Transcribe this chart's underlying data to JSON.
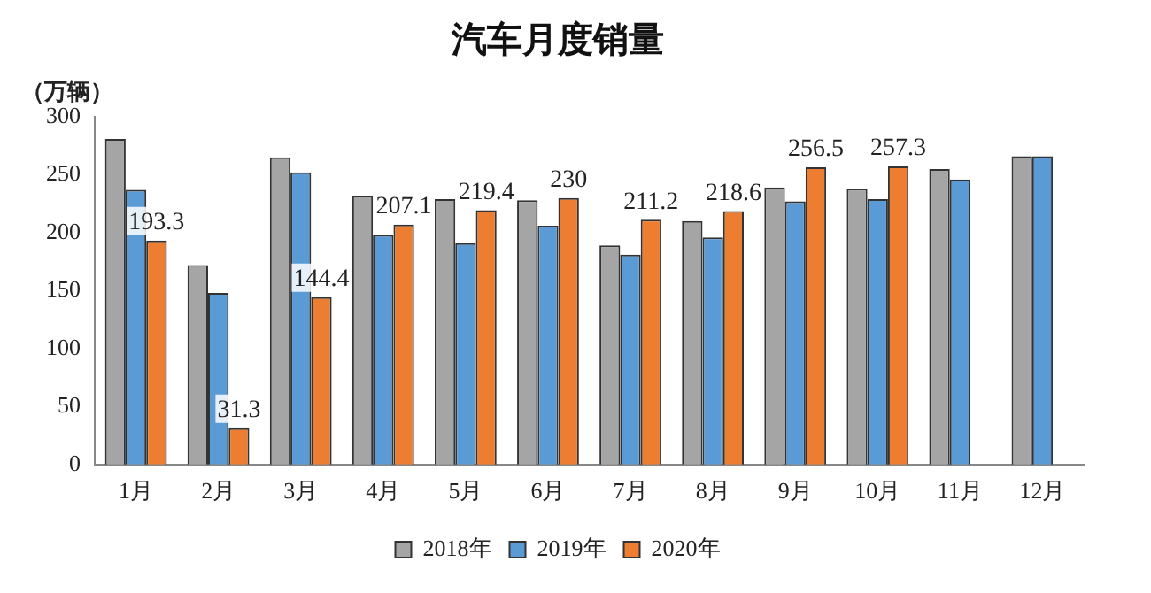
{
  "chart_data": {
    "type": "bar",
    "title": "汽车月度销量",
    "ylabel": "（万辆）",
    "categories": [
      "1月",
      "2月",
      "3月",
      "4月",
      "5月",
      "6月",
      "7月",
      "8月",
      "9月",
      "10月",
      "11月",
      "12月"
    ],
    "series": [
      {
        "name": "2018年",
        "color": "#a5a5a5",
        "values": [
          281,
          172,
          265,
          232,
          229,
          228,
          189,
          210,
          239,
          238,
          255,
          266
        ]
      },
      {
        "name": "2019年",
        "color": "#5b9bd5",
        "values": [
          237,
          148,
          252,
          198,
          191,
          206,
          181,
          196,
          227,
          229,
          246,
          266
        ]
      },
      {
        "name": "2020年",
        "color": "#ed7d31",
        "values": [
          193.3,
          31.3,
          144.4,
          207.1,
          219.4,
          230,
          211.2,
          218.6,
          256.5,
          257.3,
          null,
          null
        ],
        "value_labels": [
          "193.3",
          "31.3",
          "144.4",
          "207.1",
          "219.4",
          "230",
          "211.2",
          "218.6",
          "256.5",
          "257.3",
          null,
          null
        ]
      }
    ],
    "ylim": [
      0,
      300
    ],
    "yticks": [
      0,
      50,
      100,
      150,
      200,
      250,
      300
    ],
    "grid": false,
    "legend": "bottom"
  }
}
